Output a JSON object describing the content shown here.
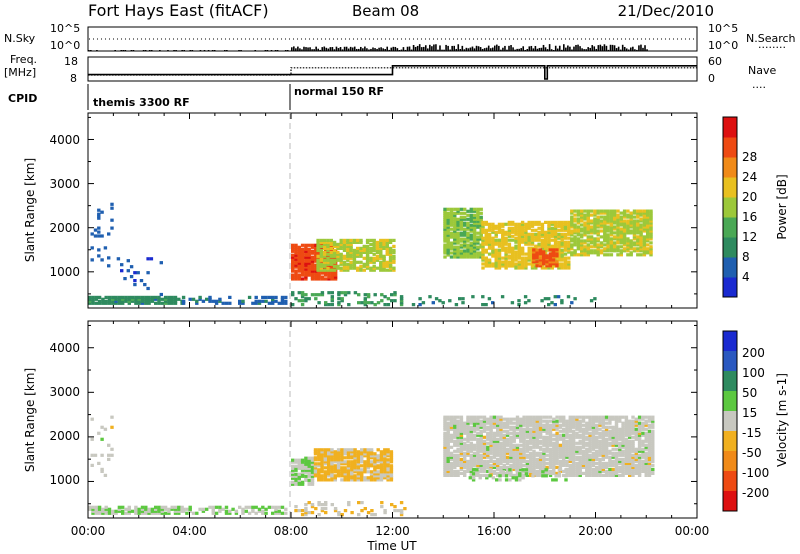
{
  "header": {
    "station": "Fort Hays East (fitACF)",
    "beam": "Beam 08",
    "date": "21/Dec/2010"
  },
  "status_panel": {
    "nsky_label": "N.Sky",
    "nsearch_label": "N.Search",
    "nsearch_marker": "........",
    "nsky_ticks": [
      "10^5",
      "10^0"
    ],
    "freq_label": "Freq.",
    "freq_unit": "[MHz]",
    "freq_ticks": [
      "18",
      "8"
    ],
    "nave_label": "Nave",
    "nave_marker": "....",
    "nave_ticks": [
      "60",
      "0"
    ],
    "cpid_label": "CPID",
    "cpid_modes": [
      {
        "label": "themis 3300 RF",
        "start_hour": 0
      },
      {
        "label": "normal 150 RF",
        "start_hour": 8
      }
    ],
    "freq_series": {
      "hours": [
        0,
        8,
        8,
        24
      ],
      "values": [
        10.5,
        10.5,
        13.5,
        13.5
      ]
    },
    "nave_series": {
      "hours": [
        0,
        12,
        12,
        18,
        18,
        18.1,
        18.1,
        24
      ],
      "values": [
        16,
        16,
        38,
        38,
        5,
        5,
        38,
        38
      ]
    }
  },
  "x_axis": {
    "label": "Time UT",
    "ticks": [
      "00:00",
      "04:00",
      "08:00",
      "12:00",
      "16:00",
      "20:00",
      "00:00"
    ]
  },
  "power_panel": {
    "y_label": "Slant Range [km]",
    "y_ticks": [
      "1000",
      "2000",
      "3000",
      "4000"
    ],
    "colorbar_label": "Power [dB]",
    "colorbar_ticks": [
      "4",
      "8",
      "12",
      "16",
      "20",
      "24",
      "28"
    ],
    "colors": [
      "#1a2ad0",
      "#1f5fb0",
      "#2e8a5f",
      "#4aa855",
      "#9cc83a",
      "#e8c020",
      "#f08a18",
      "#ee4a12",
      "#dd1010"
    ]
  },
  "velocity_panel": {
    "y_label": "Slant Range [km]",
    "y_ticks": [
      "1000",
      "2000",
      "3000",
      "4000"
    ],
    "colorbar_label": "Velocity [m s-1]",
    "colorbar_ticks": [
      "200",
      "100",
      "50",
      "15",
      "-15",
      "-50",
      "-100",
      "-200"
    ],
    "colors": [
      "#1a2ad0",
      "#2a58c0",
      "#2e8a5f",
      "#5cc840",
      "#c8c8c0",
      "#f0b020",
      "#f08a18",
      "#ee4a12",
      "#dd1010"
    ]
  },
  "chart_data": [
    {
      "type": "heatmap",
      "title": "Power [dB]",
      "xlabel": "Time UT",
      "ylabel": "Slant Range [km]",
      "x_range_hours": [
        0,
        24
      ],
      "y_range_km": [
        180,
        4600
      ],
      "value_range": [
        0,
        32
      ],
      "regions": [
        {
          "t0": 0.0,
          "t1": 3.7,
          "r0": 250,
          "r1": 420,
          "value": 9,
          "density": 0.85
        },
        {
          "t0": 3.7,
          "t1": 7.8,
          "r0": 250,
          "r1": 400,
          "value": 6,
          "density": 0.45
        },
        {
          "t0": 0.1,
          "t1": 0.9,
          "r0": 1100,
          "r1": 2500,
          "value": 5,
          "density": 0.12
        },
        {
          "t0": 1.0,
          "t1": 3.0,
          "r0": 450,
          "r1": 1300,
          "value": 5,
          "density": 0.05
        },
        {
          "t0": 8.0,
          "t1": 9.8,
          "r0": 800,
          "r1": 1600,
          "value": 27,
          "density": 0.9
        },
        {
          "t0": 9.0,
          "t1": 12.0,
          "r0": 1000,
          "r1": 1700,
          "value": 17,
          "density": 0.75
        },
        {
          "t0": 8.0,
          "t1": 12.5,
          "r0": 220,
          "r1": 520,
          "value": 10,
          "density": 0.3
        },
        {
          "t0": 12.5,
          "t1": 20.0,
          "r0": 220,
          "r1": 420,
          "value": 8,
          "density": 0.15
        },
        {
          "t0": 14.0,
          "t1": 15.5,
          "r0": 1300,
          "r1": 2400,
          "value": 15,
          "density": 0.8
        },
        {
          "t0": 15.5,
          "t1": 19.0,
          "r0": 1050,
          "r1": 2100,
          "value": 19,
          "density": 0.8
        },
        {
          "t0": 19.0,
          "t1": 22.2,
          "r0": 1350,
          "r1": 2350,
          "value": 17,
          "density": 0.8
        },
        {
          "t0": 17.5,
          "t1": 18.5,
          "r0": 1100,
          "r1": 1500,
          "value": 26,
          "density": 0.7
        }
      ]
    },
    {
      "type": "heatmap",
      "title": "Velocity [m s-1]",
      "xlabel": "Time UT",
      "ylabel": "Slant Range [km]",
      "x_range_hours": [
        0,
        24
      ],
      "y_range_km": [
        180,
        4600
      ],
      "value_range": [
        -250,
        250
      ],
      "regions": [
        {
          "t0": 0.0,
          "t1": 3.7,
          "r0": 250,
          "r1": 420,
          "value": 30,
          "density": 0.85
        },
        {
          "t0": 3.7,
          "t1": 7.8,
          "r0": 250,
          "r1": 400,
          "value": 20,
          "density": 0.45
        },
        {
          "t0": 0.1,
          "t1": 0.9,
          "r0": 1100,
          "r1": 2500,
          "value": 0,
          "density": 0.1
        },
        {
          "t0": 8.0,
          "t1": 8.9,
          "r0": 900,
          "r1": 1500,
          "value": 25,
          "density": 0.85
        },
        {
          "t0": 8.9,
          "t1": 12.0,
          "r0": 1000,
          "r1": 1700,
          "value": -40,
          "density": 0.85
        },
        {
          "t0": 8.0,
          "t1": 12.5,
          "r0": 220,
          "r1": 520,
          "value": -30,
          "density": 0.3
        },
        {
          "t0": 14.0,
          "t1": 22.2,
          "r0": 1100,
          "r1": 2450,
          "value": 0,
          "density": 0.85
        },
        {
          "t0": 15.0,
          "t1": 19.0,
          "r0": 1000,
          "r1": 1250,
          "value": 30,
          "density": 0.25
        }
      ]
    }
  ]
}
